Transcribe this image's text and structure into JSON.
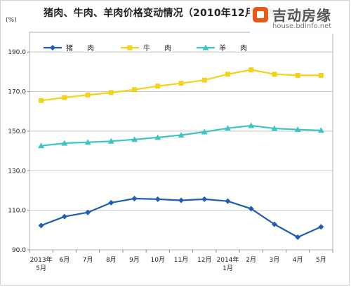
{
  "page": {
    "title": "猪肉、牛肉、羊肉价格变动情况（2010年12月价格=100）",
    "unit": "(%)"
  },
  "watermark": {
    "brand": "吉动房缘",
    "url": "house.bdinfo.net"
  },
  "chart_data": {
    "type": "line",
    "title": "猪肉、牛肉、羊肉价格变动情况（2010年12月价格=100）",
    "ylabel": "(%)",
    "ylim": [
      90,
      200
    ],
    "yticks": [
      90.0,
      110.0,
      130.0,
      150.0,
      170.0,
      190.0
    ],
    "ytick_labels": [
      "90.0",
      "110.0",
      "130.0",
      "150.0",
      "170.0",
      "190.0"
    ],
    "categories": [
      [
        "2013年",
        "5月"
      ],
      [
        "6月"
      ],
      [
        "7月"
      ],
      [
        "8月"
      ],
      [
        "9月"
      ],
      [
        "10月"
      ],
      [
        "11月"
      ],
      [
        "12月"
      ],
      [
        "2014年",
        "1月"
      ],
      [
        "2月"
      ],
      [
        "3月"
      ],
      [
        "4月"
      ],
      [
        "5月"
      ]
    ],
    "grid": "horizontal",
    "legend_position": "top-left",
    "series": [
      {
        "name": "猪　　肉",
        "color": "#1f5fb0",
        "marker": "diamond",
        "values": [
          102.3,
          106.8,
          108.9,
          113.8,
          115.9,
          115.6,
          115.0,
          115.6,
          114.6,
          110.8,
          102.9,
          96.4,
          101.6
        ]
      },
      {
        "name": "牛　　肉",
        "color": "#f3d21b",
        "marker": "square",
        "values": [
          165.5,
          167.0,
          168.3,
          169.5,
          171.0,
          172.8,
          174.2,
          175.8,
          178.8,
          181.0,
          178.8,
          178.2,
          178.2
        ]
      },
      {
        "name": "羊　　肉",
        "color": "#3fc4c4",
        "marker": "triangle",
        "values": [
          142.6,
          143.9,
          144.4,
          144.9,
          145.8,
          146.8,
          148.0,
          149.6,
          151.5,
          152.8,
          151.4,
          150.8,
          150.4
        ]
      }
    ]
  }
}
